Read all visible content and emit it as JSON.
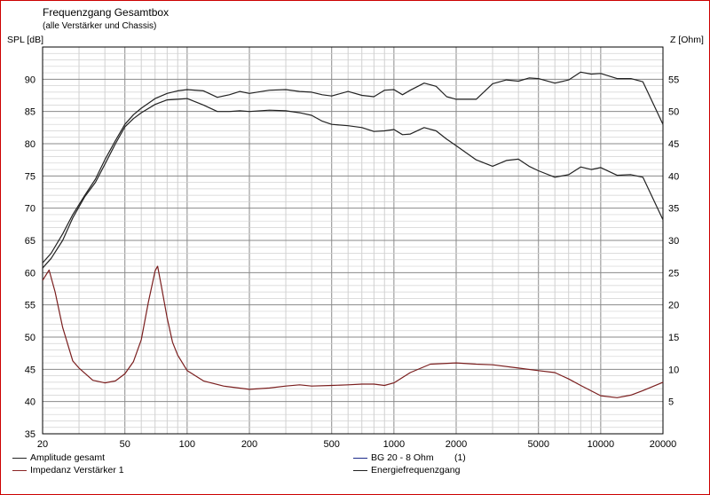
{
  "chart_data": {
    "type": "line",
    "title": "Frequenzgang Gesamtbox",
    "subtitle": "(alle Verstärker und Chassis)",
    "ylabel_left": "SPL [dB]",
    "ylabel_right": "Z [Ohm]",
    "xscale": "log",
    "xlim": [
      20,
      20000
    ],
    "ylim_left": [
      35,
      95
    ],
    "ylim_right": [
      0,
      60
    ],
    "grid": true,
    "x_ticks": [
      "20",
      "50",
      "100",
      "200",
      "500",
      "1000",
      "2000",
      "5000",
      "10000",
      "20000"
    ],
    "y_left_ticks": [
      "90",
      "85",
      "80",
      "75",
      "70",
      "65",
      "60",
      "55",
      "50",
      "45",
      "40",
      "35"
    ],
    "y_right_ticks": [
      "55",
      "50",
      "45",
      "40",
      "35",
      "30",
      "25",
      "20",
      "15",
      "10",
      "5"
    ],
    "series": [
      {
        "name": "Amplitude gesamt",
        "axis": "left",
        "color": "#222222",
        "points": [
          [
            20,
            61.5
          ],
          [
            22,
            63
          ],
          [
            25,
            66
          ],
          [
            28,
            69
          ],
          [
            32,
            72
          ],
          [
            36,
            74.5
          ],
          [
            40,
            77.5
          ],
          [
            45,
            80.5
          ],
          [
            50,
            83
          ],
          [
            55,
            84.5
          ],
          [
            60,
            85.5
          ],
          [
            70,
            87
          ],
          [
            80,
            87.8
          ],
          [
            90,
            88.2
          ],
          [
            100,
            88.4
          ],
          [
            120,
            88.2
          ],
          [
            140,
            87.2
          ],
          [
            160,
            87.6
          ],
          [
            180,
            88.1
          ],
          [
            200,
            87.8
          ],
          [
            250,
            88.3
          ],
          [
            300,
            88.4
          ],
          [
            350,
            88.1
          ],
          [
            400,
            88
          ],
          [
            450,
            87.6
          ],
          [
            500,
            87.4
          ],
          [
            600,
            88.1
          ],
          [
            700,
            87.5
          ],
          [
            800,
            87.3
          ],
          [
            900,
            88.3
          ],
          [
            1000,
            88.4
          ],
          [
            1100,
            87.6
          ],
          [
            1200,
            88.3
          ],
          [
            1400,
            89.4
          ],
          [
            1600,
            88.9
          ],
          [
            1800,
            87.3
          ],
          [
            2000,
            86.9
          ],
          [
            2500,
            86.9
          ],
          [
            3000,
            89.3
          ],
          [
            3500,
            89.9
          ],
          [
            4000,
            89.7
          ],
          [
            4500,
            90.2
          ],
          [
            5000,
            90.1
          ],
          [
            6000,
            89.4
          ],
          [
            7000,
            89.9
          ],
          [
            8000,
            91.1
          ],
          [
            9000,
            90.8
          ],
          [
            10000,
            90.9
          ],
          [
            12000,
            90.1
          ],
          [
            14000,
            90.1
          ],
          [
            16000,
            89.6
          ],
          [
            20000,
            83
          ]
        ]
      },
      {
        "name": "Energiefrequenzgang",
        "axis": "left",
        "color": "#222222",
        "points": [
          [
            20,
            60.7
          ],
          [
            22,
            62.2
          ],
          [
            25,
            65
          ],
          [
            28,
            68.5
          ],
          [
            32,
            71.8
          ],
          [
            36,
            74
          ],
          [
            40,
            76.8
          ],
          [
            45,
            80
          ],
          [
            50,
            82.6
          ],
          [
            55,
            83.9
          ],
          [
            60,
            84.8
          ],
          [
            70,
            86.1
          ],
          [
            80,
            86.8
          ],
          [
            90,
            86.9
          ],
          [
            100,
            87
          ],
          [
            120,
            86
          ],
          [
            140,
            85
          ],
          [
            160,
            85
          ],
          [
            180,
            85.1
          ],
          [
            200,
            85
          ],
          [
            250,
            85.2
          ],
          [
            300,
            85.1
          ],
          [
            350,
            84.8
          ],
          [
            400,
            84.4
          ],
          [
            450,
            83.5
          ],
          [
            500,
            83
          ],
          [
            600,
            82.8
          ],
          [
            700,
            82.5
          ],
          [
            800,
            81.9
          ],
          [
            900,
            82
          ],
          [
            1000,
            82.2
          ],
          [
            1100,
            81.4
          ],
          [
            1200,
            81.5
          ],
          [
            1400,
            82.5
          ],
          [
            1600,
            82
          ],
          [
            1800,
            80.7
          ],
          [
            2000,
            79.7
          ],
          [
            2500,
            77.5
          ],
          [
            3000,
            76.5
          ],
          [
            3500,
            77.4
          ],
          [
            4000,
            77.6
          ],
          [
            4500,
            76.5
          ],
          [
            5000,
            75.8
          ],
          [
            6000,
            74.8
          ],
          [
            7000,
            75.2
          ],
          [
            8000,
            76.4
          ],
          [
            9000,
            76
          ],
          [
            10000,
            76.3
          ],
          [
            12000,
            75.1
          ],
          [
            14000,
            75.2
          ],
          [
            16000,
            74.8
          ],
          [
            20000,
            68.2
          ]
        ]
      },
      {
        "name": "Impedanz Verstärker 1",
        "axis": "right",
        "color": "#7a1e1e",
        "points": [
          [
            20,
            23.8
          ],
          [
            21.5,
            25.4
          ],
          [
            23,
            22
          ],
          [
            25,
            16.5
          ],
          [
            28,
            11.3
          ],
          [
            30,
            10.2
          ],
          [
            35,
            8.3
          ],
          [
            40,
            7.9
          ],
          [
            45,
            8.2
          ],
          [
            50,
            9.3
          ],
          [
            55,
            11.2
          ],
          [
            60,
            14.6
          ],
          [
            65,
            20.5
          ],
          [
            70,
            25.3
          ],
          [
            72,
            26
          ],
          [
            75,
            23
          ],
          [
            80,
            18
          ],
          [
            85,
            14.2
          ],
          [
            90,
            12.2
          ],
          [
            100,
            9.8
          ],
          [
            120,
            8.2
          ],
          [
            150,
            7.4
          ],
          [
            200,
            6.9
          ],
          [
            250,
            7.1
          ],
          [
            300,
            7.4
          ],
          [
            350,
            7.6
          ],
          [
            400,
            7.4
          ],
          [
            500,
            7.5
          ],
          [
            600,
            7.6
          ],
          [
            700,
            7.7
          ],
          [
            800,
            7.7
          ],
          [
            900,
            7.5
          ],
          [
            1000,
            7.9
          ],
          [
            1200,
            9.5
          ],
          [
            1500,
            10.8
          ],
          [
            2000,
            11
          ],
          [
            2500,
            10.8
          ],
          [
            3000,
            10.7
          ],
          [
            4000,
            10.2
          ],
          [
            5000,
            9.8
          ],
          [
            6000,
            9.5
          ],
          [
            7000,
            8.5
          ],
          [
            8000,
            7.5
          ],
          [
            10000,
            5.9
          ],
          [
            12000,
            5.6
          ],
          [
            14000,
            6
          ],
          [
            16000,
            6.7
          ],
          [
            20000,
            8
          ]
        ]
      }
    ],
    "legend": [
      {
        "label": "Amplitude gesamt",
        "color": "#222222"
      },
      {
        "label": "Impedanz Verstärker 1",
        "color": "#8b2525"
      },
      {
        "label": "BG 20 - 8 Ohm        (1)",
        "color": "#1c2a8a"
      },
      {
        "label": "Energiefrequenzgang",
        "color": "#222222"
      }
    ]
  }
}
